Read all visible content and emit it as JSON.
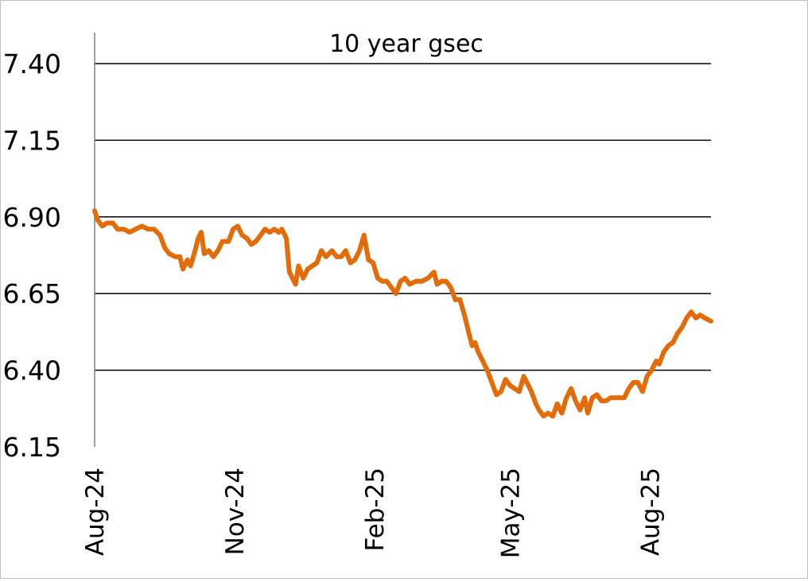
{
  "colors": {
    "line": "#E36C0A",
    "grid": "#000000",
    "axis": "#808080",
    "text": "#000000"
  },
  "chart_data": {
    "type": "line",
    "title": "10 year gsec",
    "xlabel": "",
    "ylabel": "",
    "ylim": [
      6.15,
      7.4
    ],
    "yticks": [
      "7.40",
      "7.15",
      "6.90",
      "6.65",
      "6.40",
      "6.15"
    ],
    "xlim": [
      "2024-08-01",
      "2025-09-10"
    ],
    "xticks": [
      {
        "label": "Aug-24",
        "date": "2024-08-01"
      },
      {
        "label": "Nov-24",
        "date": "2024-11-01"
      },
      {
        "label": "Feb-25",
        "date": "2025-02-01"
      },
      {
        "label": "May-25",
        "date": "2025-05-01"
      },
      {
        "label": "Aug-25",
        "date": "2025-08-01"
      }
    ],
    "grid": true,
    "legend": "none",
    "series": [
      {
        "color": "#E36C0A",
        "points": [
          [
            "2024-08-01",
            6.92
          ],
          [
            "2024-08-03",
            6.89
          ],
          [
            "2024-08-06",
            6.87
          ],
          [
            "2024-08-09",
            6.88
          ],
          [
            "2024-08-13",
            6.88
          ],
          [
            "2024-08-16",
            6.86
          ],
          [
            "2024-08-20",
            6.86
          ],
          [
            "2024-08-24",
            6.85
          ],
          [
            "2024-08-28",
            6.86
          ],
          [
            "2024-09-01",
            6.87
          ],
          [
            "2024-09-05",
            6.86
          ],
          [
            "2024-09-09",
            6.86
          ],
          [
            "2024-09-13",
            6.84
          ],
          [
            "2024-09-16",
            6.8
          ],
          [
            "2024-09-19",
            6.78
          ],
          [
            "2024-09-23",
            6.77
          ],
          [
            "2024-09-26",
            6.77
          ],
          [
            "2024-09-28",
            6.73
          ],
          [
            "2024-10-01",
            6.76
          ],
          [
            "2024-10-03",
            6.74
          ],
          [
            "2024-10-06",
            6.79
          ],
          [
            "2024-10-08",
            6.83
          ],
          [
            "2024-10-10",
            6.85
          ],
          [
            "2024-10-12",
            6.78
          ],
          [
            "2024-10-15",
            6.79
          ],
          [
            "2024-10-18",
            6.77
          ],
          [
            "2024-10-21",
            6.79
          ],
          [
            "2024-10-24",
            6.82
          ],
          [
            "2024-10-28",
            6.82
          ],
          [
            "2024-10-31",
            6.86
          ],
          [
            "2024-11-03",
            6.87
          ],
          [
            "2024-11-06",
            6.84
          ],
          [
            "2024-11-09",
            6.83
          ],
          [
            "2024-11-12",
            6.81
          ],
          [
            "2024-11-15",
            6.82
          ],
          [
            "2024-11-18",
            6.84
          ],
          [
            "2024-11-21",
            6.86
          ],
          [
            "2024-11-24",
            6.85
          ],
          [
            "2024-11-27",
            6.86
          ],
          [
            "2024-11-30",
            6.85
          ],
          [
            "2024-12-02",
            6.86
          ],
          [
            "2024-12-05",
            6.83
          ],
          [
            "2024-12-07",
            6.72
          ],
          [
            "2024-12-09",
            6.7
          ],
          [
            "2024-12-11",
            6.68
          ],
          [
            "2024-12-13",
            6.74
          ],
          [
            "2024-12-16",
            6.7
          ],
          [
            "2024-12-19",
            6.73
          ],
          [
            "2024-12-22",
            6.74
          ],
          [
            "2024-12-25",
            6.75
          ],
          [
            "2024-12-28",
            6.79
          ],
          [
            "2024-12-31",
            6.77
          ],
          [
            "2025-01-04",
            6.79
          ],
          [
            "2025-01-07",
            6.77
          ],
          [
            "2025-01-10",
            6.77
          ],
          [
            "2025-01-13",
            6.79
          ],
          [
            "2025-01-16",
            6.75
          ],
          [
            "2025-01-19",
            6.76
          ],
          [
            "2025-01-22",
            6.79
          ],
          [
            "2025-01-25",
            6.84
          ],
          [
            "2025-01-28",
            6.76
          ],
          [
            "2025-01-31",
            6.75
          ],
          [
            "2025-02-03",
            6.7
          ],
          [
            "2025-02-06",
            6.69
          ],
          [
            "2025-02-09",
            6.69
          ],
          [
            "2025-02-12",
            6.67
          ],
          [
            "2025-02-15",
            6.65
          ],
          [
            "2025-02-18",
            6.69
          ],
          [
            "2025-02-21",
            6.7
          ],
          [
            "2025-02-24",
            6.68
          ],
          [
            "2025-02-28",
            6.69
          ],
          [
            "2025-03-04",
            6.69
          ],
          [
            "2025-03-08",
            6.7
          ],
          [
            "2025-03-12",
            6.72
          ],
          [
            "2025-03-14",
            6.68
          ],
          [
            "2025-03-17",
            6.69
          ],
          [
            "2025-03-20",
            6.69
          ],
          [
            "2025-03-23",
            6.67
          ],
          [
            "2025-03-26",
            6.63
          ],
          [
            "2025-03-29",
            6.63
          ],
          [
            "2025-04-01",
            6.58
          ],
          [
            "2025-04-04",
            6.52
          ],
          [
            "2025-04-06",
            6.48
          ],
          [
            "2025-04-08",
            6.49
          ],
          [
            "2025-04-10",
            6.46
          ],
          [
            "2025-04-13",
            6.43
          ],
          [
            "2025-04-16",
            6.4
          ],
          [
            "2025-04-19",
            6.36
          ],
          [
            "2025-04-22",
            6.32
          ],
          [
            "2025-04-25",
            6.33
          ],
          [
            "2025-04-28",
            6.37
          ],
          [
            "2025-05-01",
            6.35
          ],
          [
            "2025-05-04",
            6.34
          ],
          [
            "2025-05-07",
            6.33
          ],
          [
            "2025-05-10",
            6.38
          ],
          [
            "2025-05-13",
            6.35
          ],
          [
            "2025-05-15",
            6.33
          ],
          [
            "2025-05-18",
            6.29
          ],
          [
            "2025-05-20",
            6.27
          ],
          [
            "2025-05-23",
            6.25
          ],
          [
            "2025-05-26",
            6.26
          ],
          [
            "2025-05-29",
            6.25
          ],
          [
            "2025-06-01",
            6.29
          ],
          [
            "2025-06-04",
            6.26
          ],
          [
            "2025-06-07",
            6.31
          ],
          [
            "2025-06-10",
            6.34
          ],
          [
            "2025-06-13",
            6.3
          ],
          [
            "2025-06-16",
            6.27
          ],
          [
            "2025-06-19",
            6.31
          ],
          [
            "2025-06-21",
            6.26
          ],
          [
            "2025-06-24",
            6.31
          ],
          [
            "2025-06-27",
            6.32
          ],
          [
            "2025-06-30",
            6.3
          ],
          [
            "2025-07-03",
            6.3
          ],
          [
            "2025-07-06",
            6.31
          ],
          [
            "2025-07-09",
            6.31
          ],
          [
            "2025-07-12",
            6.31
          ],
          [
            "2025-07-15",
            6.31
          ],
          [
            "2025-07-18",
            6.34
          ],
          [
            "2025-07-21",
            6.36
          ],
          [
            "2025-07-24",
            6.36
          ],
          [
            "2025-07-27",
            6.33
          ],
          [
            "2025-07-30",
            6.38
          ],
          [
            "2025-08-02",
            6.4
          ],
          [
            "2025-08-05",
            6.43
          ],
          [
            "2025-08-07",
            6.42
          ],
          [
            "2025-08-10",
            6.46
          ],
          [
            "2025-08-13",
            6.48
          ],
          [
            "2025-08-16",
            6.49
          ],
          [
            "2025-08-19",
            6.52
          ],
          [
            "2025-08-22",
            6.54
          ],
          [
            "2025-08-25",
            6.57
          ],
          [
            "2025-08-28",
            6.59
          ],
          [
            "2025-08-31",
            6.57
          ],
          [
            "2025-09-03",
            6.58
          ],
          [
            "2025-09-06",
            6.57
          ],
          [
            "2025-09-10",
            6.56
          ]
        ]
      }
    ]
  }
}
